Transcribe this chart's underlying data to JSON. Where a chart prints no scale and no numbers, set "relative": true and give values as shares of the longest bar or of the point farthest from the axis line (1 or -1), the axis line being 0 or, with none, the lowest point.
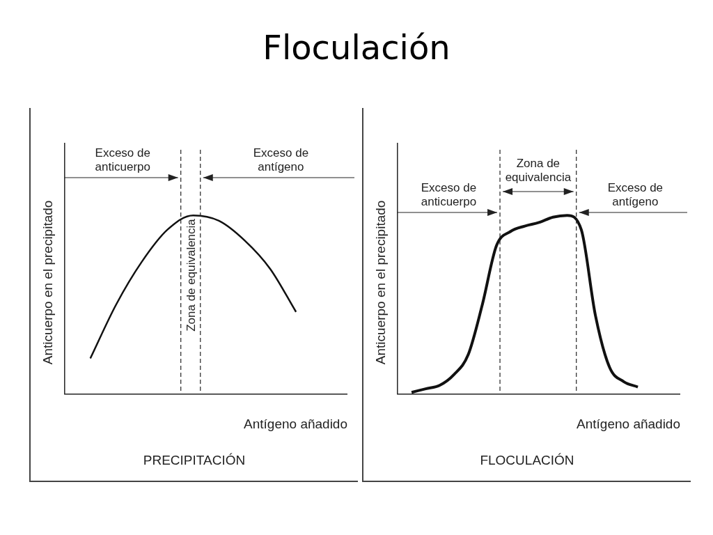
{
  "chart_data": [
    {
      "type": "line",
      "title": "Floculación",
      "relative": true,
      "ylabel": "Anticuerpo en el precipitado",
      "xlabel": "Antígeno añadido",
      "categories": [
        null,
        null,
        null,
        null,
        null,
        null,
        null,
        null,
        null,
        null,
        null,
        null
      ],
      "color": "#111111",
      "values": [
        null,
        0.2,
        0.5,
        0.74,
        0.92,
        1.0,
        0.97,
        0.86,
        0.7,
        0.46,
        null,
        null
      ],
      "marker": "none",
      "grid": false,
      "legend": false,
      "annotations": [
        "Exceso de anticuerpo",
        "Exceso de antígeno",
        "Zona de equivalencia",
        "PRECIPITACIÓN"
      ]
    },
    {
      "type": "line",
      "relative": true,
      "ylabel": "Anticuerpo en el precipitado",
      "xlabel": "Antígeno añadido",
      "categories": [
        null,
        null,
        null,
        null,
        null,
        null,
        null,
        null,
        null,
        null,
        null,
        null,
        null,
        null,
        null,
        null,
        null,
        null,
        null,
        null,
        null
      ],
      "color": "#111111",
      "values": [
        null,
        0.01,
        0.03,
        0.05,
        0.11,
        0.22,
        0.5,
        0.83,
        0.91,
        0.94,
        0.96,
        0.99,
        1.0,
        0.92,
        0.44,
        0.15,
        0.07,
        0.04,
        null,
        null,
        null
      ],
      "marker": "none",
      "grid": false,
      "legend": false,
      "annotations": [
        "Exceso de anticuerpo",
        "Exceso de antígeno",
        "Zona de equivalencia",
        "FLOCULACIÓN"
      ]
    }
  ]
}
